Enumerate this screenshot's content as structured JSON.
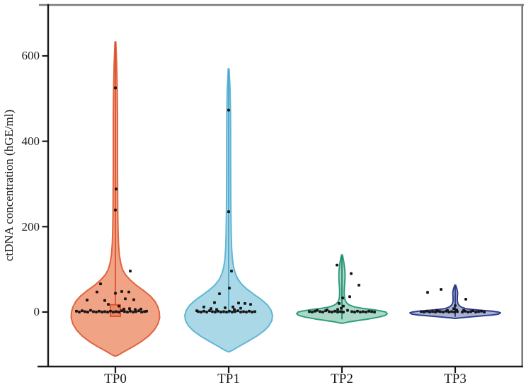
{
  "colors": {
    "axis": "#1a1a1a",
    "frame": "#7a7a7a",
    "dot": "#141414",
    "background": "#ffffff"
  },
  "chart_data": {
    "type": "violin",
    "title": "",
    "xlabel": "",
    "ylabel": "ctDNA concentration (hGE/ml)",
    "categories": [
      "TP0",
      "TP1",
      "TP2",
      "TP3"
    ],
    "y_ticks": [
      0,
      200,
      400,
      600
    ],
    "ylim": [
      -130,
      720
    ],
    "grid": false,
    "legend": "none",
    "series": [
      {
        "name": "TP0",
        "fill": "#F0A385",
        "stroke": "#E2633E",
        "line": "#D95231",
        "value_range": [
          -103,
          633
        ],
        "box": {
          "lo": -10,
          "hi": 17,
          "w": 14,
          "fill": "#ED8A66",
          "stroke": "#D84E2D"
        },
        "center_line": [
          -10,
          630
        ],
        "profile": [
          [
            633,
            0.6
          ],
          [
            580,
            1.8
          ],
          [
            520,
            2.6
          ],
          [
            460,
            3.0
          ],
          [
            400,
            3.0
          ],
          [
            340,
            3.0
          ],
          [
            280,
            3.2
          ],
          [
            230,
            3.4
          ],
          [
            190,
            3.8
          ],
          [
            160,
            4.4
          ],
          [
            135,
            5.5
          ],
          [
            115,
            7.5
          ],
          [
            100,
            10
          ],
          [
            88,
            14
          ],
          [
            75,
            21
          ],
          [
            62,
            30
          ],
          [
            50,
            40
          ],
          [
            38,
            49
          ],
          [
            25,
            56
          ],
          [
            12,
            60
          ],
          [
            0,
            62
          ],
          [
            -14,
            62.5
          ],
          [
            -28,
            60
          ],
          [
            -42,
            55
          ],
          [
            -56,
            47
          ],
          [
            -70,
            36
          ],
          [
            -82,
            24
          ],
          [
            -92,
            13
          ],
          [
            -100,
            5
          ],
          [
            -103,
            1
          ]
        ],
        "points": [
          [
            0,
            525
          ],
          [
            1,
            288
          ],
          [
            0,
            239
          ],
          [
            21,
            96
          ],
          [
            -21,
            66
          ],
          [
            -26,
            47
          ],
          [
            9,
            48
          ],
          [
            19,
            47
          ],
          [
            0,
            44
          ],
          [
            -40,
            28
          ],
          [
            -15,
            27
          ],
          [
            14,
            31
          ],
          [
            26,
            29
          ],
          [
            -10,
            18
          ],
          [
            5,
            14
          ],
          [
            -55,
            2
          ],
          [
            -51,
            0
          ],
          [
            -47,
            3
          ],
          [
            -43,
            1
          ],
          [
            -39,
            0
          ],
          [
            -35,
            4
          ],
          [
            -31,
            1
          ],
          [
            -27,
            0
          ],
          [
            -23,
            2
          ],
          [
            -19,
            0
          ],
          [
            -15,
            1
          ],
          [
            -11,
            0
          ],
          [
            -7,
            2
          ],
          [
            -3,
            0
          ],
          [
            1,
            1
          ],
          [
            5,
            0
          ],
          [
            9,
            3
          ],
          [
            13,
            1
          ],
          [
            17,
            0
          ],
          [
            21,
            2
          ],
          [
            25,
            0
          ],
          [
            29,
            1
          ],
          [
            33,
            3
          ],
          [
            37,
            0
          ],
          [
            41,
            1
          ],
          [
            12,
            7
          ],
          [
            20,
            8
          ],
          [
            28,
            6
          ],
          [
            36,
            7
          ],
          [
            44,
            2
          ]
        ]
      },
      {
        "name": "TP1",
        "fill": "#AAD8E7",
        "stroke": "#5FB6D5",
        "line": "#4FA6C8",
        "value_range": [
          -93,
          570
        ],
        "box": null,
        "center_line": [
          -4,
          567
        ],
        "profile": [
          [
            570,
            0.6
          ],
          [
            520,
            2.0
          ],
          [
            470,
            2.6
          ],
          [
            420,
            2.8
          ],
          [
            370,
            2.8
          ],
          [
            320,
            2.9
          ],
          [
            270,
            3.0
          ],
          [
            220,
            3.3
          ],
          [
            180,
            3.7
          ],
          [
            150,
            4.2
          ],
          [
            125,
            5.2
          ],
          [
            105,
            7
          ],
          [
            90,
            9.5
          ],
          [
            77,
            13
          ],
          [
            64,
            19
          ],
          [
            52,
            27
          ],
          [
            40,
            37
          ],
          [
            28,
            47
          ],
          [
            16,
            55
          ],
          [
            4,
            60
          ],
          [
            -8,
            62
          ],
          [
            -20,
            61
          ],
          [
            -32,
            57
          ],
          [
            -44,
            50
          ],
          [
            -56,
            40
          ],
          [
            -68,
            28
          ],
          [
            -79,
            16
          ],
          [
            -88,
            7
          ],
          [
            -93,
            1
          ]
        ],
        "points": [
          [
            0,
            473
          ],
          [
            0,
            235
          ],
          [
            4,
            96
          ],
          [
            1,
            56
          ],
          [
            -13,
            43
          ],
          [
            -20,
            22
          ],
          [
            14,
            21
          ],
          [
            23,
            20
          ],
          [
            31,
            18
          ],
          [
            -35,
            12
          ],
          [
            6,
            12
          ],
          [
            -5,
            10
          ],
          [
            -25,
            8
          ],
          [
            17,
            9
          ],
          [
            -43,
            1
          ],
          [
            -39,
            0
          ],
          [
            -35,
            2
          ],
          [
            -31,
            0
          ],
          [
            -27,
            3
          ],
          [
            -23,
            1
          ],
          [
            -19,
            0
          ],
          [
            -15,
            2
          ],
          [
            -11,
            0
          ],
          [
            -7,
            1
          ],
          [
            -3,
            0
          ],
          [
            1,
            2
          ],
          [
            5,
            0
          ],
          [
            9,
            1
          ],
          [
            13,
            3
          ],
          [
            17,
            0
          ],
          [
            21,
            1
          ],
          [
            25,
            0
          ],
          [
            29,
            2
          ],
          [
            33,
            0
          ],
          [
            37,
            1
          ],
          [
            -45,
            3
          ],
          [
            8,
            6
          ],
          [
            -17,
            6
          ]
        ]
      },
      {
        "name": "TP2",
        "fill": "#ABD9C7",
        "stroke": "#2F9C7F",
        "line": "#1F8A6E",
        "value_range": [
          -26,
          134
        ],
        "box": null,
        "center_line": [
          -17,
          131
        ],
        "profile": [
          [
            134,
            0.6
          ],
          [
            125,
            1.8
          ],
          [
            115,
            2.8
          ],
          [
            105,
            3.6
          ],
          [
            95,
            4.2
          ],
          [
            85,
            4.4
          ],
          [
            75,
            4.2
          ],
          [
            65,
            3.8
          ],
          [
            55,
            3.4
          ],
          [
            46,
            3.2
          ],
          [
            38,
            3.4
          ],
          [
            31,
            4.0
          ],
          [
            25,
            5.2
          ],
          [
            20,
            7.5
          ],
          [
            16,
            11
          ],
          [
            12,
            18
          ],
          [
            9,
            28
          ],
          [
            6,
            42
          ],
          [
            3,
            54
          ],
          [
            0,
            62
          ],
          [
            -4,
            64
          ],
          [
            -8,
            61
          ],
          [
            -12,
            52
          ],
          [
            -16,
            38
          ],
          [
            -20,
            22
          ],
          [
            -23,
            10
          ],
          [
            -26,
            2
          ]
        ],
        "points": [
          [
            -7,
            110
          ],
          [
            13,
            90
          ],
          [
            24,
            63
          ],
          [
            11,
            36
          ],
          [
            1,
            33
          ],
          [
            -4,
            20
          ],
          [
            2,
            14
          ],
          [
            -1,
            9
          ],
          [
            -6,
            6
          ],
          [
            -46,
            1
          ],
          [
            -42,
            0
          ],
          [
            -38,
            2
          ],
          [
            -31,
            1
          ],
          [
            -27,
            0
          ],
          [
            -23,
            3
          ],
          [
            -18,
            1
          ],
          [
            -14,
            0
          ],
          [
            -10,
            2
          ],
          [
            -6,
            0
          ],
          [
            -2,
            1
          ],
          [
            2,
            0
          ],
          [
            14,
            1
          ],
          [
            18,
            0
          ],
          [
            22,
            2
          ],
          [
            26,
            0
          ],
          [
            30,
            1
          ],
          [
            34,
            0
          ],
          [
            38,
            2
          ],
          [
            42,
            1
          ],
          [
            46,
            0
          ],
          [
            -35,
            4
          ],
          [
            -21,
            5
          ],
          [
            8,
            4
          ]
        ]
      },
      {
        "name": "TP3",
        "fill": "#A9B2D6",
        "stroke": "#303F8C",
        "line": "#2A3577",
        "value_range": [
          -15,
          63
        ],
        "box": null,
        "center_line": [
          -11,
          60
        ],
        "profile": [
          [
            63,
            0.6
          ],
          [
            58,
            1.6
          ],
          [
            53,
            2.6
          ],
          [
            48,
            3.2
          ],
          [
            43,
            3.4
          ],
          [
            38,
            3.2
          ],
          [
            33,
            3.0
          ],
          [
            28,
            3.0
          ],
          [
            24,
            3.2
          ],
          [
            20,
            3.8
          ],
          [
            17,
            4.8
          ],
          [
            14,
            6.5
          ],
          [
            11,
            9.5
          ],
          [
            8,
            15
          ],
          [
            6,
            24
          ],
          [
            4,
            38
          ],
          [
            2,
            52
          ],
          [
            0,
            61
          ],
          [
            -2,
            64
          ],
          [
            -5,
            61
          ],
          [
            -7,
            52
          ],
          [
            -9,
            38
          ],
          [
            -11,
            24
          ],
          [
            -13,
            12
          ],
          [
            -14,
            5
          ],
          [
            -15,
            1
          ]
        ],
        "points": [
          [
            -39,
            46
          ],
          [
            -20,
            53
          ],
          [
            15,
            30
          ],
          [
            0,
            15
          ],
          [
            -2,
            8
          ],
          [
            2,
            5
          ],
          [
            -48,
            1
          ],
          [
            -44,
            0
          ],
          [
            -40,
            2
          ],
          [
            -36,
            0
          ],
          [
            -32,
            1
          ],
          [
            -28,
            0
          ],
          [
            -24,
            2
          ],
          [
            -21,
            1
          ],
          [
            -17,
            0
          ],
          [
            -13,
            2
          ],
          [
            -9,
            0
          ],
          [
            -5,
            1
          ],
          [
            -1,
            0
          ],
          [
            3,
            1
          ],
          [
            10,
            0
          ],
          [
            14,
            2
          ],
          [
            18,
            0
          ],
          [
            22,
            1
          ],
          [
            29,
            0
          ],
          [
            33,
            1
          ],
          [
            37,
            2
          ],
          [
            41,
            0
          ],
          [
            -26,
            4
          ],
          [
            12,
            4
          ],
          [
            25,
            3
          ],
          [
            -11,
            4
          ]
        ]
      }
    ]
  }
}
